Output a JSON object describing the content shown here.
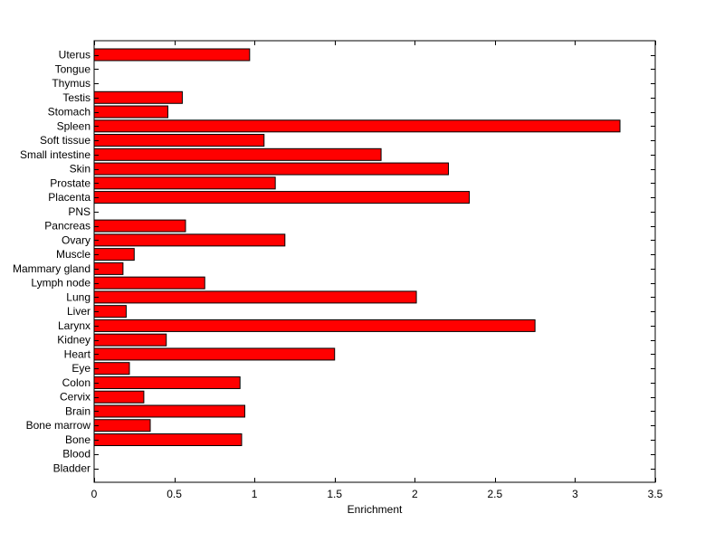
{
  "chart_data": {
    "type": "bar",
    "orientation": "horizontal",
    "categories": [
      "Uterus",
      "Tongue",
      "Thymus",
      "Testis",
      "Stomach",
      "Spleen",
      "Soft tissue",
      "Small intestine",
      "Skin",
      "Prostate",
      "Placenta",
      "PNS",
      "Pancreas",
      "Ovary",
      "Muscle",
      "Mammary gland",
      "Lymph node",
      "Lung",
      "Liver",
      "Larynx",
      "Kidney",
      "Heart",
      "Eye",
      "Colon",
      "Cervix",
      "Brain",
      "Bone marrow",
      "Bone",
      "Blood",
      "Bladder"
    ],
    "values": [
      0.97,
      0,
      0,
      0.55,
      0.46,
      3.28,
      1.06,
      1.79,
      2.21,
      1.13,
      2.34,
      0,
      0.57,
      1.19,
      0.25,
      0.18,
      0.69,
      2.01,
      0.2,
      2.75,
      0.45,
      1.5,
      0.22,
      0.91,
      0.31,
      0.94,
      0.35,
      0.92,
      0,
      0
    ],
    "xlabel": "Enrichment",
    "ylabel": "",
    "title": "",
    "xlim": [
      0,
      3.5
    ],
    "xticks": [
      "0",
      "0.5",
      "1",
      "1.5",
      "2",
      "2.5",
      "3",
      "3.5"
    ],
    "bar_color": "#ff0000",
    "grid": false
  }
}
